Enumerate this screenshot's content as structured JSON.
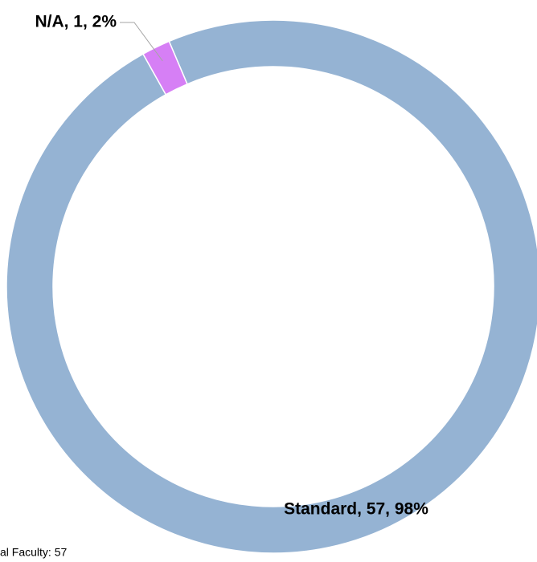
{
  "chart_data": {
    "type": "donut",
    "categories": [
      "Standard",
      "N/A"
    ],
    "values": [
      57,
      1
    ],
    "value_labels": [
      "Standard, 57, 98%",
      "N/A, 1, 2%"
    ],
    "colors": [
      "#95b3d3",
      "#d67ff5"
    ],
    "note": "al Faculty: 57"
  }
}
